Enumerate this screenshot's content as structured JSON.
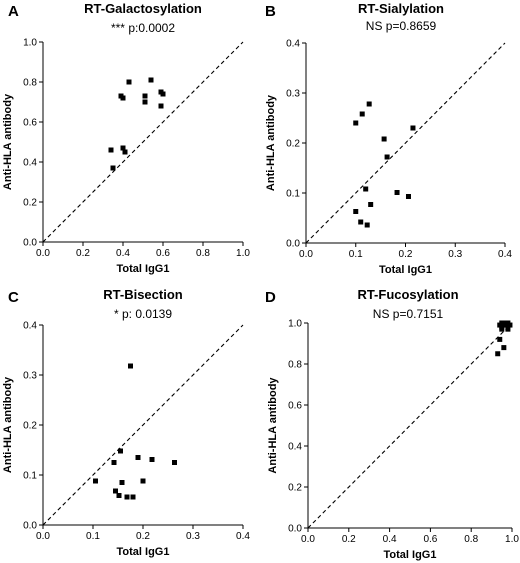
{
  "chart_data": [
    {
      "panel": "A",
      "type": "scatter",
      "title": "RT-Galactosylation",
      "subtitle": "*** p:0.0002",
      "xlabel": "Total IgG1",
      "ylabel": "Anti-HLA antibody",
      "xlim": [
        0,
        1
      ],
      "ylim": [
        0,
        1
      ],
      "xticks": [
        "0.0",
        "0.2",
        "0.4",
        "0.6",
        "0.8",
        "1.0"
      ],
      "yticks": [
        "0.0",
        "0.2",
        "0.4",
        "0.6",
        "0.8",
        "1.0"
      ],
      "identity_line": true,
      "points": [
        {
          "x": 0.34,
          "y": 0.46
        },
        {
          "x": 0.35,
          "y": 0.37
        },
        {
          "x": 0.39,
          "y": 0.73
        },
        {
          "x": 0.4,
          "y": 0.72
        },
        {
          "x": 0.4,
          "y": 0.47
        },
        {
          "x": 0.41,
          "y": 0.45
        },
        {
          "x": 0.43,
          "y": 0.8
        },
        {
          "x": 0.51,
          "y": 0.73
        },
        {
          "x": 0.51,
          "y": 0.7
        },
        {
          "x": 0.54,
          "y": 0.81
        },
        {
          "x": 0.59,
          "y": 0.75
        },
        {
          "x": 0.59,
          "y": 0.68
        },
        {
          "x": 0.6,
          "y": 0.74
        }
      ]
    },
    {
      "panel": "B",
      "type": "scatter",
      "title": "RT-Sialylation",
      "subtitle": "NS p=0.8659",
      "xlabel": "Total IgG1",
      "ylabel": "Anti-HLA antibody",
      "xlim": [
        0,
        0.4
      ],
      "ylim": [
        0,
        0.4
      ],
      "xticks": [
        "0.0",
        "0.1",
        "0.2",
        "0.3",
        "0.4"
      ],
      "yticks": [
        "0.0",
        "0.1",
        "0.2",
        "0.3",
        "0.4"
      ],
      "identity_line": true,
      "points": [
        {
          "x": 0.1,
          "y": 0.24
        },
        {
          "x": 0.1,
          "y": 0.063
        },
        {
          "x": 0.11,
          "y": 0.042
        },
        {
          "x": 0.113,
          "y": 0.258
        },
        {
          "x": 0.12,
          "y": 0.108
        },
        {
          "x": 0.123,
          "y": 0.036
        },
        {
          "x": 0.127,
          "y": 0.278
        },
        {
          "x": 0.13,
          "y": 0.077
        },
        {
          "x": 0.157,
          "y": 0.208
        },
        {
          "x": 0.163,
          "y": 0.172
        },
        {
          "x": 0.183,
          "y": 0.101
        },
        {
          "x": 0.206,
          "y": 0.093
        },
        {
          "x": 0.215,
          "y": 0.23
        }
      ]
    },
    {
      "panel": "C",
      "type": "scatter",
      "title": "RT-Bisection",
      "subtitle": "* p: 0.0139",
      "xlabel": "Total IgG1",
      "ylabel": "Anti-HLA antibody",
      "xlim": [
        0,
        0.4
      ],
      "ylim": [
        0,
        0.4
      ],
      "xticks": [
        "0.0",
        "0.1",
        "0.2",
        "0.3",
        "0.4"
      ],
      "yticks": [
        "0.0",
        "0.1",
        "0.2",
        "0.3",
        "0.4"
      ],
      "identity_line": true,
      "points": [
        {
          "x": 0.105,
          "y": 0.088
        },
        {
          "x": 0.142,
          "y": 0.125
        },
        {
          "x": 0.145,
          "y": 0.068
        },
        {
          "x": 0.152,
          "y": 0.059
        },
        {
          "x": 0.155,
          "y": 0.148
        },
        {
          "x": 0.158,
          "y": 0.085
        },
        {
          "x": 0.168,
          "y": 0.056
        },
        {
          "x": 0.175,
          "y": 0.318
        },
        {
          "x": 0.18,
          "y": 0.056
        },
        {
          "x": 0.19,
          "y": 0.135
        },
        {
          "x": 0.2,
          "y": 0.088
        },
        {
          "x": 0.218,
          "y": 0.131
        },
        {
          "x": 0.263,
          "y": 0.125
        }
      ]
    },
    {
      "panel": "D",
      "type": "scatter",
      "title": "RT-Fucosylation",
      "subtitle": "NS p=0.7151",
      "xlabel": "Total IgG1",
      "ylabel": "Anti-HLA antibody",
      "xlim": [
        0,
        1
      ],
      "ylim": [
        0,
        1
      ],
      "xticks": [
        "0.0",
        "0.2",
        "0.4",
        "0.6",
        "0.8",
        "1.0"
      ],
      "yticks": [
        "0.0",
        "0.2",
        "0.4",
        "0.6",
        "0.8",
        "1.0"
      ],
      "identity_line": true,
      "points": [
        {
          "x": 0.93,
          "y": 0.85
        },
        {
          "x": 0.94,
          "y": 0.92
        },
        {
          "x": 0.94,
          "y": 0.99
        },
        {
          "x": 0.95,
          "y": 1.0
        },
        {
          "x": 0.95,
          "y": 0.98
        },
        {
          "x": 0.96,
          "y": 0.99
        },
        {
          "x": 0.96,
          "y": 0.88
        },
        {
          "x": 0.97,
          "y": 1.0
        },
        {
          "x": 0.97,
          "y": 0.99
        },
        {
          "x": 0.98,
          "y": 1.0
        },
        {
          "x": 0.98,
          "y": 0.97
        },
        {
          "x": 0.99,
          "y": 0.99
        },
        {
          "x": 0.95,
          "y": 0.97
        }
      ]
    }
  ]
}
